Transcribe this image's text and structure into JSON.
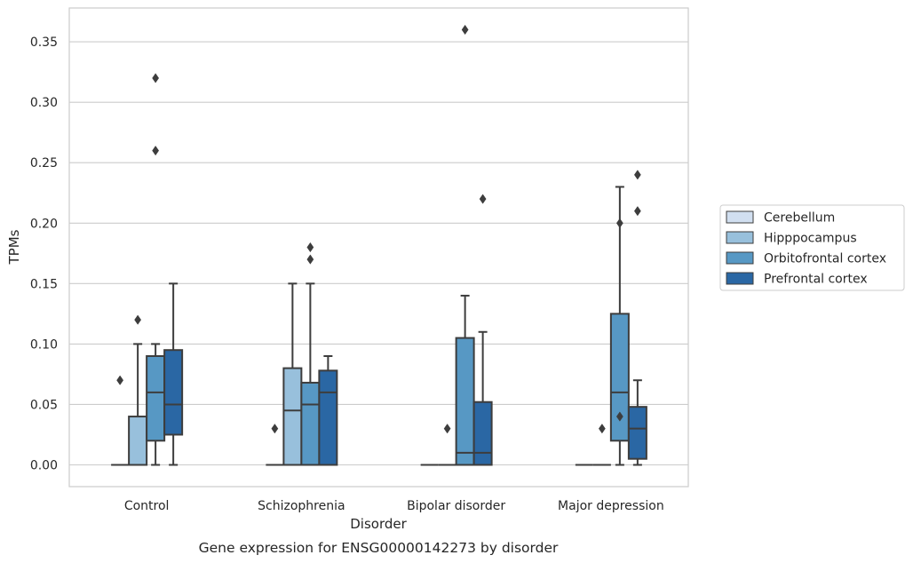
{
  "chart_data": {
    "type": "box",
    "caption": "Gene expression for ENSG00000142273 by disorder",
    "xlabel": "Disorder",
    "ylabel": "TPMs",
    "ylim": [
      -0.018,
      0.378
    ],
    "yticks": [
      0.0,
      0.05,
      0.1,
      0.15,
      0.2,
      0.25,
      0.3,
      0.35
    ],
    "ytick_labels": [
      "0.00",
      "0.05",
      "0.10",
      "0.15",
      "0.20",
      "0.25",
      "0.30",
      "0.35"
    ],
    "grid": "horizontal",
    "legend_position": "right",
    "categories": [
      "Control",
      "Schizophrenia",
      "Bipolar disorder",
      "Major depression"
    ],
    "series": [
      {
        "name": "Cerebellum",
        "color": "#d1dff0",
        "boxes": [
          {
            "q1": 0,
            "median": 0,
            "q3": 0,
            "whisker_low": 0,
            "whisker_high": 0,
            "outliers": [
              0.07
            ]
          },
          {
            "q1": 0,
            "median": 0,
            "q3": 0,
            "whisker_low": 0,
            "whisker_high": 0,
            "outliers": [
              0.03
            ]
          },
          {
            "q1": 0,
            "median": 0,
            "q3": 0,
            "whisker_low": 0,
            "whisker_high": 0,
            "outliers": []
          },
          {
            "q1": 0,
            "median": 0,
            "q3": 0,
            "whisker_low": 0,
            "whisker_high": 0,
            "outliers": []
          }
        ]
      },
      {
        "name": "Hipppocampus",
        "color": "#98c0dc",
        "boxes": [
          {
            "q1": 0,
            "median": 0,
            "q3": 0.04,
            "whisker_low": 0,
            "whisker_high": 0.1,
            "outliers": [
              0.12
            ]
          },
          {
            "q1": 0,
            "median": 0.045,
            "q3": 0.08,
            "whisker_low": 0,
            "whisker_high": 0.15,
            "outliers": []
          },
          {
            "q1": 0,
            "median": 0,
            "q3": 0,
            "whisker_low": 0,
            "whisker_high": 0,
            "outliers": [
              0.03
            ]
          },
          {
            "q1": 0,
            "median": 0,
            "q3": 0,
            "whisker_low": 0,
            "whisker_high": 0,
            "outliers": [
              0.03
            ]
          }
        ]
      },
      {
        "name": "Orbitofrontal cortex",
        "color": "#5798c4",
        "boxes": [
          {
            "q1": 0.02,
            "median": 0.06,
            "q3": 0.09,
            "whisker_low": 0,
            "whisker_high": 0.1,
            "outliers": [
              0.26,
              0.32
            ]
          },
          {
            "q1": 0,
            "median": 0.05,
            "q3": 0.068,
            "whisker_low": 0,
            "whisker_high": 0.15,
            "outliers": [
              0.17,
              0.18
            ]
          },
          {
            "q1": 0,
            "median": 0.01,
            "q3": 0.105,
            "whisker_low": 0,
            "whisker_high": 0.14,
            "outliers": [
              0.36
            ]
          },
          {
            "q1": 0.02,
            "median": 0.06,
            "q3": 0.125,
            "whisker_low": 0,
            "whisker_high": 0.23,
            "outliers": [
              0.04,
              0.2
            ]
          }
        ]
      },
      {
        "name": "Prefrontal cortex",
        "color": "#2a67a4",
        "boxes": [
          {
            "q1": 0.025,
            "median": 0.05,
            "q3": 0.095,
            "whisker_low": 0,
            "whisker_high": 0.15,
            "outliers": []
          },
          {
            "q1": 0,
            "median": 0.06,
            "q3": 0.078,
            "whisker_low": 0,
            "whisker_high": 0.09,
            "outliers": []
          },
          {
            "q1": 0,
            "median": 0.01,
            "q3": 0.052,
            "whisker_low": 0,
            "whisker_high": 0.11,
            "outliers": [
              0.22
            ]
          },
          {
            "q1": 0.005,
            "median": 0.03,
            "q3": 0.048,
            "whisker_low": 0,
            "whisker_high": 0.07,
            "outliers": [
              0.21,
              0.24
            ]
          }
        ]
      }
    ]
  },
  "colors": {
    "edge": "#3d3d3d",
    "grid": "#cccccc",
    "frame": "#cccccc",
    "text": "#262626"
  }
}
